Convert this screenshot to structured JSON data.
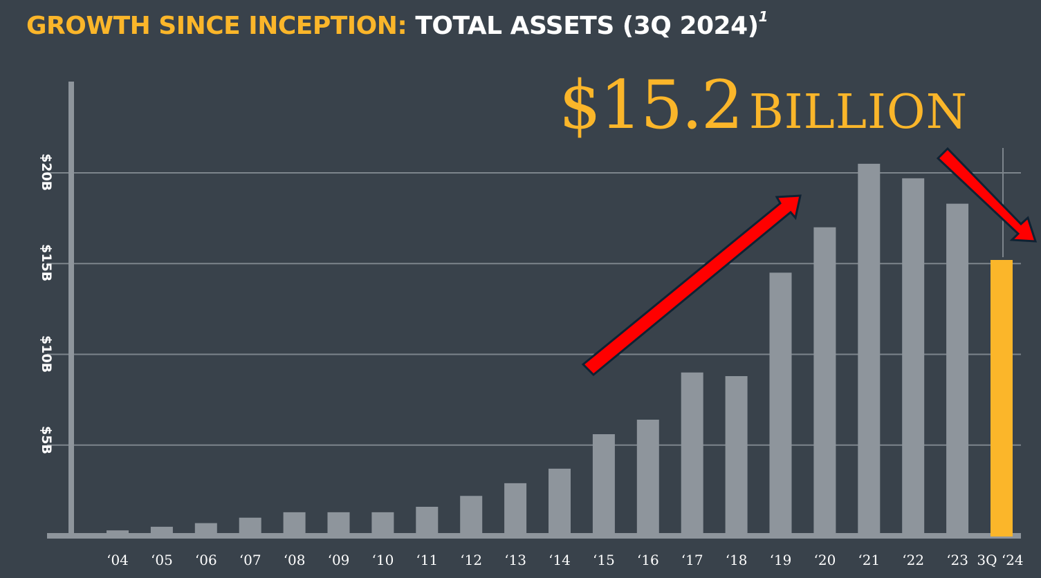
{
  "title": {
    "accent": "GROWTH SINCE INCEPTION:",
    "main": "TOTAL ASSETS (3Q 2024)",
    "footnote": "1"
  },
  "callout": {
    "value": "$15.2",
    "unit": "BILLION"
  },
  "colors": {
    "background": "#39424b",
    "bar": "#8e959c",
    "highlight_bar": "#fbb62a",
    "accent_text": "#fbb62a",
    "gridline": "#7d858c",
    "arrow": "#ff0000",
    "arrow_outline": "#0f2233"
  },
  "annotations": [
    {
      "type": "arrow",
      "direction": "up-right",
      "from_category": "'15",
      "to_category": "'20"
    },
    {
      "type": "arrow",
      "direction": "down-right",
      "from_category": "'22",
      "to_category": "3Q '24"
    }
  ],
  "chart_data": {
    "type": "bar",
    "title": "GROWTH SINCE INCEPTION: TOTAL ASSETS (3Q 2024)",
    "xlabel": "",
    "ylabel": "",
    "categories": [
      "'04",
      "'05",
      "'06",
      "'07",
      "'08",
      "'09",
      "'10",
      "'11",
      "'12",
      "'13",
      "'14",
      "'15",
      "'16",
      "'17",
      "'18",
      "'19",
      "'20",
      "'21",
      "'22",
      "'23",
      "3Q '24"
    ],
    "values": [
      0.3,
      0.5,
      0.7,
      1.0,
      1.3,
      1.3,
      1.3,
      1.6,
      2.2,
      2.9,
      3.7,
      5.6,
      6.4,
      9.0,
      8.8,
      14.5,
      17.0,
      20.5,
      19.7,
      18.3,
      15.2
    ],
    "units": "USD billions",
    "highlighted_index": 20,
    "ylim": [
      0,
      25
    ],
    "yticks": [
      5,
      10,
      15,
      20
    ],
    "ytick_labels": [
      "$5B",
      "$10B",
      "$15B",
      "$20B"
    ],
    "grid": true,
    "legend": null,
    "annotation_text": "$15.2 BILLION"
  }
}
